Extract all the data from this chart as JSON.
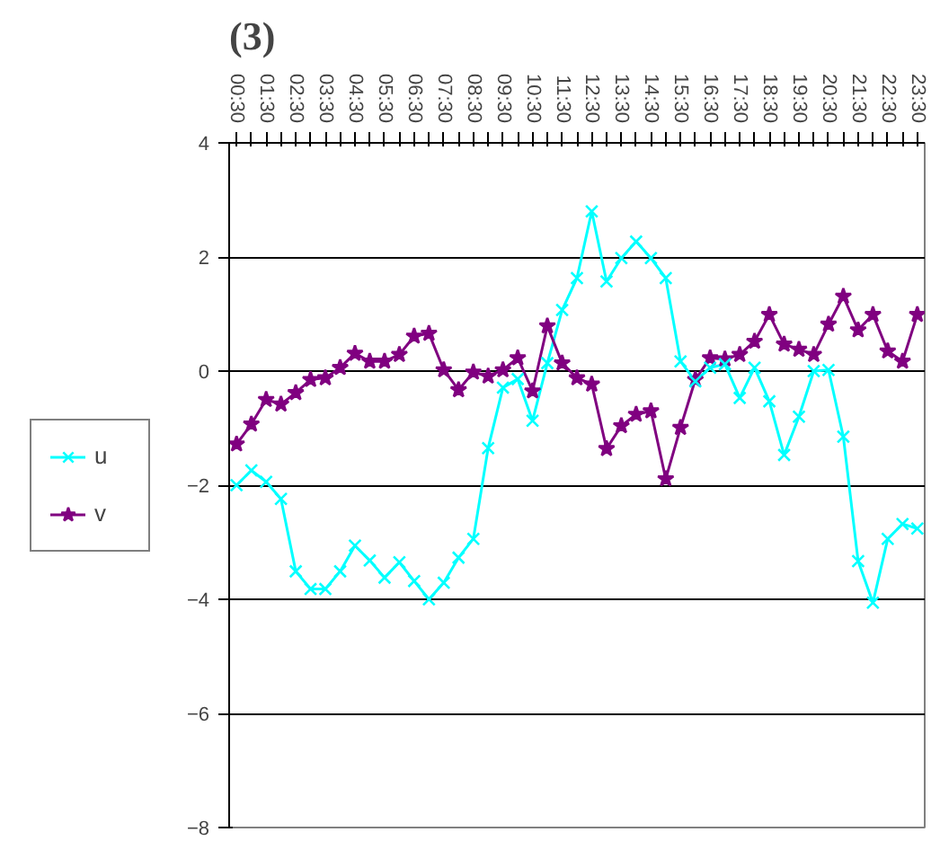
{
  "chart_data": {
    "type": "line",
    "title": "(3)",
    "categories": [
      "00:30",
      null,
      "01:30",
      null,
      "02:30",
      null,
      "03:30",
      null,
      "04:30",
      null,
      "05:30",
      null,
      "06:30",
      null,
      "07:30",
      null,
      "08:30",
      null,
      "09:30",
      null,
      "10:30",
      null,
      "11:30",
      null,
      "12:30",
      null,
      "13:30",
      null,
      "14:30",
      null,
      "15:30",
      null,
      "16:30",
      null,
      "17:30",
      null,
      "18:30",
      null,
      "19:30",
      null,
      "20:30",
      null,
      "21:30",
      null,
      "22:30",
      null,
      "23:30"
    ],
    "series": [
      {
        "name": "u",
        "color": "#00ffff",
        "marker": "cross",
        "values": [
          -2.0,
          -1.74,
          -1.94,
          -2.24,
          -3.51,
          -3.82,
          -3.82,
          -3.51,
          -3.06,
          -3.32,
          -3.62,
          -3.35,
          -3.68,
          -4.0,
          -3.71,
          -3.27,
          -2.94,
          -1.35,
          -0.29,
          -0.14,
          -0.87,
          0.14,
          1.07,
          1.63,
          2.8,
          1.57,
          1.98,
          2.27,
          1.98,
          1.63,
          0.17,
          -0.18,
          0.06,
          0.12,
          -0.47,
          0.06,
          -0.53,
          -1.47,
          -0.8,
          0.0,
          0.02,
          -1.15,
          -3.33,
          -4.06,
          -2.94,
          -2.68,
          -2.76
        ]
      },
      {
        "name": "v",
        "color": "#800080",
        "marker": "star",
        "values": [
          -1.28,
          -0.93,
          -0.5,
          -0.58,
          -0.38,
          -0.15,
          -0.12,
          0.06,
          0.31,
          0.17,
          0.17,
          0.29,
          0.61,
          0.66,
          0.02,
          -0.33,
          -0.02,
          -0.09,
          0.02,
          0.23,
          -0.35,
          0.79,
          0.14,
          -0.12,
          -0.23,
          -1.36,
          -0.96,
          -0.76,
          -0.7,
          -1.89,
          -0.99,
          -0.15,
          0.23,
          0.21,
          0.29,
          0.52,
          0.99,
          0.47,
          0.38,
          0.29,
          0.82,
          1.31,
          0.72,
          0.99,
          0.35,
          0.17,
          0.99
        ]
      }
    ],
    "ylim": [
      -8,
      4
    ],
    "yticks": [
      -8,
      -6,
      -4,
      -2,
      0,
      2,
      4
    ],
    "grid": "y",
    "legend": "left",
    "line_style": "solid"
  }
}
